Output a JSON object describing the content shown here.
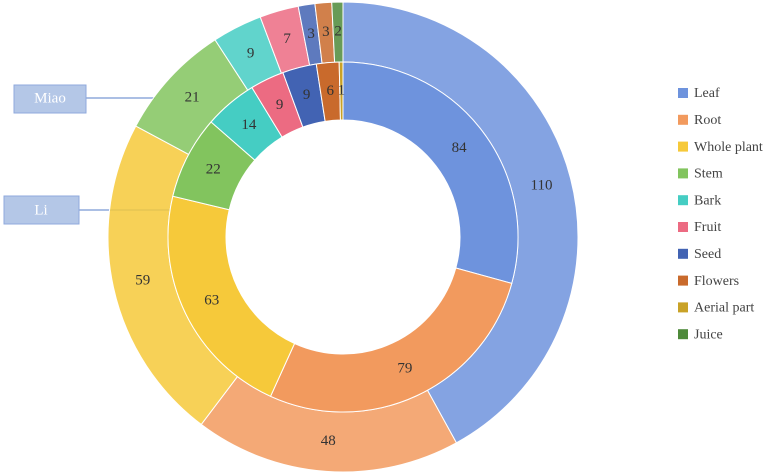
{
  "chart_data": {
    "type": "donut",
    "categories": [
      "Leaf",
      "Root",
      "Whole plant",
      "Stem",
      "Bark",
      "Fruit",
      "Seed",
      "Flowers",
      "Aerial part",
      "Juice"
    ],
    "colors": [
      "#6e93dd",
      "#f29a5e",
      "#f6c93a",
      "#82c45e",
      "#45cdc3",
      "#ec6b82",
      "#4263b3",
      "#c96a2c",
      "#c9a227",
      "#4e8a3a"
    ],
    "series": [
      {
        "name": "Miao",
        "values": [
          110,
          48,
          59,
          21,
          9,
          7,
          3,
          3,
          0,
          2
        ]
      },
      {
        "name": "Li",
        "values": [
          84,
          79,
          63,
          22,
          14,
          9,
          9,
          6,
          1,
          0
        ]
      }
    ]
  }
}
